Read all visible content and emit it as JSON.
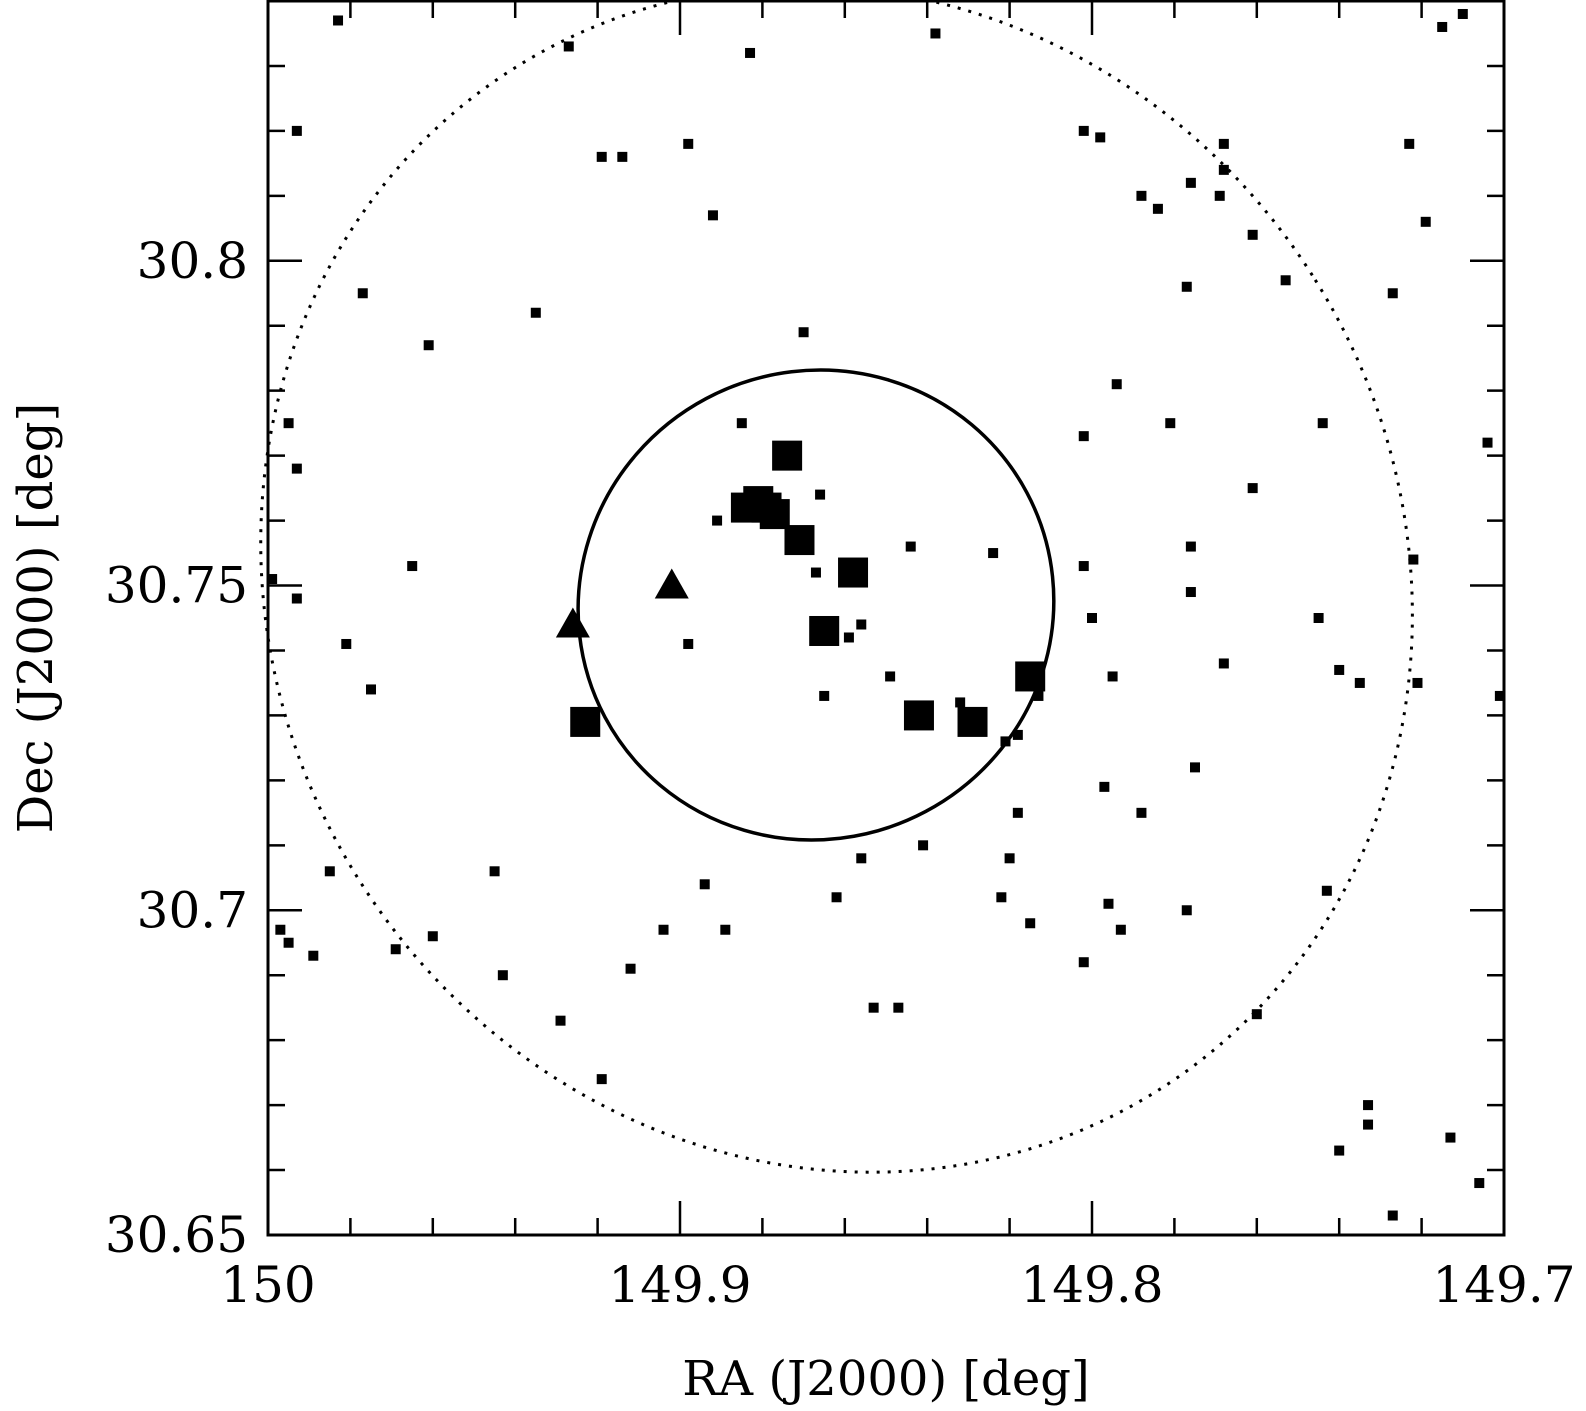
{
  "chart_data": {
    "type": "scatter",
    "title": "",
    "xlabel": "RA (J2000) [deg]",
    "ylabel": "Dec (J2000) [deg]",
    "xlim": [
      150.0,
      149.7
    ],
    "ylim": [
      30.65,
      30.84
    ],
    "x_reversed": true,
    "x_ticks": [
      150.0,
      149.9,
      149.8,
      149.7
    ],
    "x_tick_labels": [
      "150",
      "149.9",
      "149.8",
      "149.7"
    ],
    "y_ticks": [
      30.65,
      30.7,
      30.75,
      30.8
    ],
    "y_tick_labels": [
      "30.65",
      "30.7",
      "30.75",
      "30.8"
    ],
    "x_minor_step": 0.02,
    "y_minor_step": 0.01,
    "grid": false,
    "legend": "none",
    "series": [
      {
        "marker": "small-square",
        "x": [
          149.983,
          149.993,
          149.927,
          149.898,
          149.961,
          149.965,
          149.885,
          149.919,
          149.892,
          149.891,
          149.977,
          149.914,
          149.935,
          149.883,
          149.995,
          149.898,
          149.975,
          149.993,
          149.993,
          149.999,
          149.981,
          149.985,
          149.87,
          149.866,
          149.859,
          149.856,
          149.865,
          149.832,
          149.821,
          149.818,
          149.849,
          149.867,
          149.813,
          149.844,
          149.824,
          149.781,
          149.753,
          149.776,
          149.776,
          149.784,
          149.715,
          149.768,
          149.719,
          149.71,
          149.723,
          149.802,
          149.794,
          149.788,
          149.769,
          149.768,
          149.838,
          149.798,
          149.777,
          149.761,
          149.74,
          149.744,
          149.727,
          149.704,
          149.776,
          149.802,
          149.761,
          149.795,
          149.8,
          149.735,
          149.745,
          149.721,
          149.701,
          149.802,
          149.775,
          149.797,
          149.788,
          149.82,
          149.768,
          149.722,
          149.796,
          149.793,
          149.856,
          149.894,
          149.969,
          149.945,
          149.904,
          149.919,
          149.96,
          149.997,
          149.995,
          149.989,
          149.943,
          149.889,
          149.862,
          149.853,
          149.847,
          149.929,
          149.912,
          149.841,
          149.74,
          149.818,
          149.822,
          149.815,
          149.802,
          149.777,
          149.76,
          149.713,
          149.743,
          149.706,
          149.727,
          149.733,
          149.733
        ],
        "y": [
          30.837,
          30.82,
          30.833,
          30.818,
          30.787,
          30.753,
          30.775,
          30.816,
          30.807,
          30.76,
          30.795,
          30.816,
          30.792,
          30.832,
          30.775,
          30.741,
          30.734,
          30.768,
          30.748,
          30.751,
          30.741,
          30.706,
          30.789,
          30.764,
          30.742,
          30.744,
          30.733,
          30.732,
          30.726,
          30.727,
          30.736,
          30.752,
          30.733,
          30.756,
          30.755,
          30.775,
          30.797,
          30.756,
          30.812,
          30.808,
          30.836,
          30.818,
          30.806,
          30.838,
          30.818,
          30.82,
          30.781,
          30.81,
          30.81,
          30.814,
          30.835,
          30.819,
          30.796,
          30.804,
          30.737,
          30.775,
          30.795,
          30.772,
          30.749,
          30.753,
          30.765,
          30.736,
          30.745,
          30.735,
          30.745,
          30.735,
          30.733,
          30.773,
          30.722,
          30.719,
          30.715,
          30.708,
          30.738,
          30.754,
          30.701,
          30.697,
          30.708,
          30.704,
          30.694,
          30.706,
          30.697,
          30.674,
          30.696,
          30.697,
          30.695,
          30.693,
          30.69,
          30.697,
          30.702,
          30.685,
          30.685,
          30.683,
          30.691,
          30.71,
          30.663,
          30.715,
          30.702,
          30.698,
          30.692,
          30.7,
          30.684,
          30.665,
          30.703,
          30.658,
          30.653,
          30.67,
          30.667
        ],
        "note_ignore": ""
      },
      {
        "marker": "large-square",
        "x": [
          149.874,
          149.881,
          149.879,
          149.877,
          149.871,
          149.858,
          149.865,
          149.884,
          149.923,
          149.842,
          149.829,
          149.815
        ],
        "y": [
          30.77,
          30.763,
          30.762,
          30.761,
          30.757,
          30.752,
          30.743,
          30.762,
          30.729,
          30.73,
          30.729,
          30.736
        ]
      },
      {
        "marker": "triangle",
        "x": [
          149.926,
          149.902
        ],
        "y": [
          30.744,
          30.75
        ]
      }
    ],
    "ellipses": [
      {
        "style": "solid",
        "center": [
          149.867,
          30.747
        ],
        "semi_axes_deg": [
          0.058,
          0.036
        ],
        "rotation_deg": 28
      },
      {
        "style": "dotted",
        "center": [
          149.862,
          30.751
        ],
        "semi_axes_deg": [
          0.137,
          0.093
        ],
        "rotation_deg": 32
      }
    ]
  }
}
